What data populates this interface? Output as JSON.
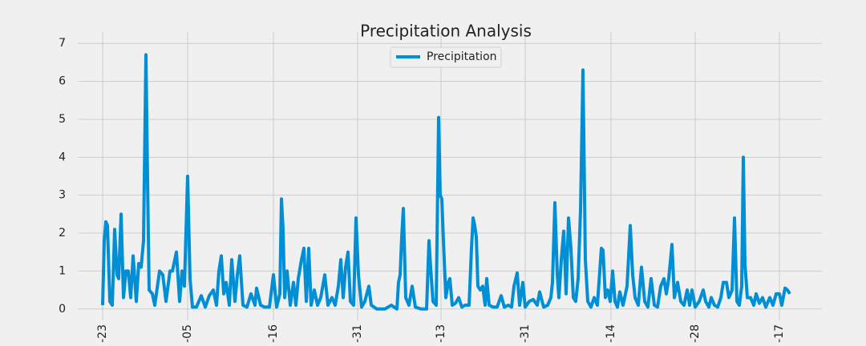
{
  "chart_data": {
    "type": "line",
    "title": "Precipitation Analysis",
    "x": [
      0,
      2,
      4,
      6,
      9,
      12,
      15,
      18,
      20,
      23,
      26,
      29,
      32,
      35,
      38,
      42,
      45,
      48,
      51,
      54,
      56,
      58,
      62,
      65,
      71,
      75,
      79,
      84,
      87,
      92,
      96,
      99,
      102,
      106,
      109,
      112,
      117,
      123,
      128,
      133,
      138,
      142,
      145,
      148,
      151,
      154,
      158,
      161,
      165,
      168,
      171,
      175,
      180,
      185,
      190,
      192,
      197,
      202,
      208,
      213,
      217,
      221,
      223,
      225,
      227,
      230,
      234,
      238,
      241,
      244,
      248,
      251,
      254,
      257,
      260,
      264,
      268,
      272,
      277,
      281,
      286,
      290,
      294,
      297,
      300,
      303,
      306,
      309,
      313,
      316,
      319,
      323,
      327,
      332,
      335,
      342,
      352,
      360,
      367,
      369,
      371,
      373,
      375,
      378,
      382,
      386,
      390,
      397,
      404,
      407,
      409,
      412,
      416,
      419,
      421,
      423,
      425,
      428,
      431,
      433,
      436,
      440,
      444,
      448,
      452,
      457,
      460,
      462,
      464,
      466,
      468,
      471,
      474,
      477,
      479,
      482,
      487,
      492,
      497,
      501,
      506,
      510,
      513,
      517,
      520,
      524,
      527,
      532,
      537,
      542,
      545,
      550,
      555,
      559,
      561,
      564,
      567,
      569,
      572,
      575,
      578,
      581,
      584,
      587,
      590,
      593,
      596,
      599,
      602,
      605,
      609,
      613,
      617,
      620,
      622,
      624,
      627,
      630,
      633,
      636,
      639,
      642,
      645,
      649,
      654,
      658,
      661,
      664,
      668,
      672,
      676,
      680,
      684,
      688,
      692,
      696,
      700,
      703,
      706,
      710,
      713,
      717,
      721,
      725,
      729,
      732,
      735,
      739,
      744,
      749,
      752,
      756,
      759,
      763,
      767,
      771,
      774,
      778,
      781,
      785,
      788,
      791,
      794,
      797,
      799,
      801,
      804,
      808,
      812,
      815,
      819,
      823,
      827,
      832,
      836,
      840,
      844,
      847,
      851,
      854,
      857
    ],
    "series": [
      {
        "name": "Precipitation",
        "color": "#008fd5",
        "values": [
          0.1,
          1.8,
          2.3,
          2.2,
          0.2,
          0.1,
          2.1,
          0.9,
          0.8,
          2.5,
          0.3,
          1.0,
          1.0,
          0.3,
          1.4,
          0.2,
          1.2,
          1.1,
          1.8,
          6.7,
          3.4,
          0.5,
          0.4,
          0.1,
          1.0,
          0.9,
          0.2,
          1.0,
          1.0,
          1.5,
          0.2,
          1.0,
          0.6,
          3.5,
          0.8,
          0.05,
          0.05,
          0.35,
          0.05,
          0.35,
          0.5,
          0.1,
          1.0,
          1.4,
          0.4,
          0.7,
          0.1,
          1.3,
          0.2,
          0.9,
          1.4,
          0.1,
          0.05,
          0.4,
          0.1,
          0.55,
          0.1,
          0.05,
          0.05,
          0.9,
          0.05,
          0.4,
          2.9,
          2.1,
          0.3,
          1.0,
          0.1,
          0.7,
          0.1,
          0.8,
          1.3,
          1.6,
          0.2,
          1.6,
          0.1,
          0.5,
          0.1,
          0.3,
          0.9,
          0.1,
          0.3,
          0.1,
          0.6,
          1.3,
          0.3,
          1.1,
          1.5,
          0.2,
          0.1,
          2.4,
          0.9,
          0.05,
          0.2,
          0.6,
          0.1,
          0.0,
          0.0,
          0.1,
          0.0,
          0.7,
          0.9,
          1.9,
          2.65,
          0.3,
          0.1,
          0.6,
          0.05,
          0.0,
          0.0,
          1.8,
          1.1,
          0.2,
          0.1,
          5.05,
          3.0,
          2.9,
          1.8,
          0.3,
          0.7,
          0.8,
          0.1,
          0.15,
          0.3,
          0.05,
          0.1,
          0.1,
          1.6,
          2.4,
          2.2,
          1.9,
          0.6,
          0.5,
          0.6,
          0.1,
          0.8,
          0.1,
          0.05,
          0.05,
          0.35,
          0.05,
          0.1,
          0.05,
          0.6,
          0.95,
          0.1,
          0.7,
          0.05,
          0.2,
          0.25,
          0.1,
          0.45,
          0.05,
          0.1,
          0.3,
          0.7,
          2.8,
          0.9,
          0.3,
          1.3,
          2.05,
          0.4,
          2.4,
          1.6,
          0.3,
          0.2,
          0.8,
          2.6,
          6.3,
          1.3,
          0.2,
          0.05,
          0.3,
          0.1,
          1.0,
          1.6,
          1.55,
          0.3,
          0.5,
          0.2,
          1.0,
          0.2,
          0.05,
          0.45,
          0.1,
          0.6,
          2.2,
          0.9,
          0.3,
          0.1,
          1.1,
          0.2,
          0.05,
          0.8,
          0.1,
          0.05,
          0.6,
          0.8,
          0.4,
          0.8,
          1.7,
          0.3,
          0.7,
          0.2,
          0.1,
          0.5,
          0.1,
          0.5,
          0.05,
          0.2,
          0.5,
          0.2,
          0.05,
          0.3,
          0.1,
          0.05,
          0.3,
          0.7,
          0.7,
          0.3,
          0.5,
          2.4,
          0.2,
          0.1,
          0.6,
          4.0,
          1.2,
          0.3,
          0.3,
          0.1,
          0.4,
          0.15,
          0.3,
          0.05,
          0.3,
          0.1,
          0.4,
          0.4,
          0.1,
          0.55,
          0.5,
          0.4
        ]
      }
    ],
    "xlim": [
      -31,
      897
    ],
    "xticks": [
      {
        "value": 0,
        "label": "-23"
      },
      {
        "value": 106,
        "label": "-05"
      },
      {
        "value": 213,
        "label": "-16"
      },
      {
        "value": 318,
        "label": "-31"
      },
      {
        "value": 422,
        "label": "-13"
      },
      {
        "value": 527,
        "label": "-31"
      },
      {
        "value": 634,
        "label": "-14"
      },
      {
        "value": 739,
        "label": "-28"
      },
      {
        "value": 844,
        "label": "-17"
      }
    ],
    "ylim": [
      -0.3,
      7.3
    ],
    "yticks": [
      0,
      1,
      2,
      3,
      4,
      5,
      6,
      7
    ],
    "grid": true,
    "legend": "upper center"
  }
}
